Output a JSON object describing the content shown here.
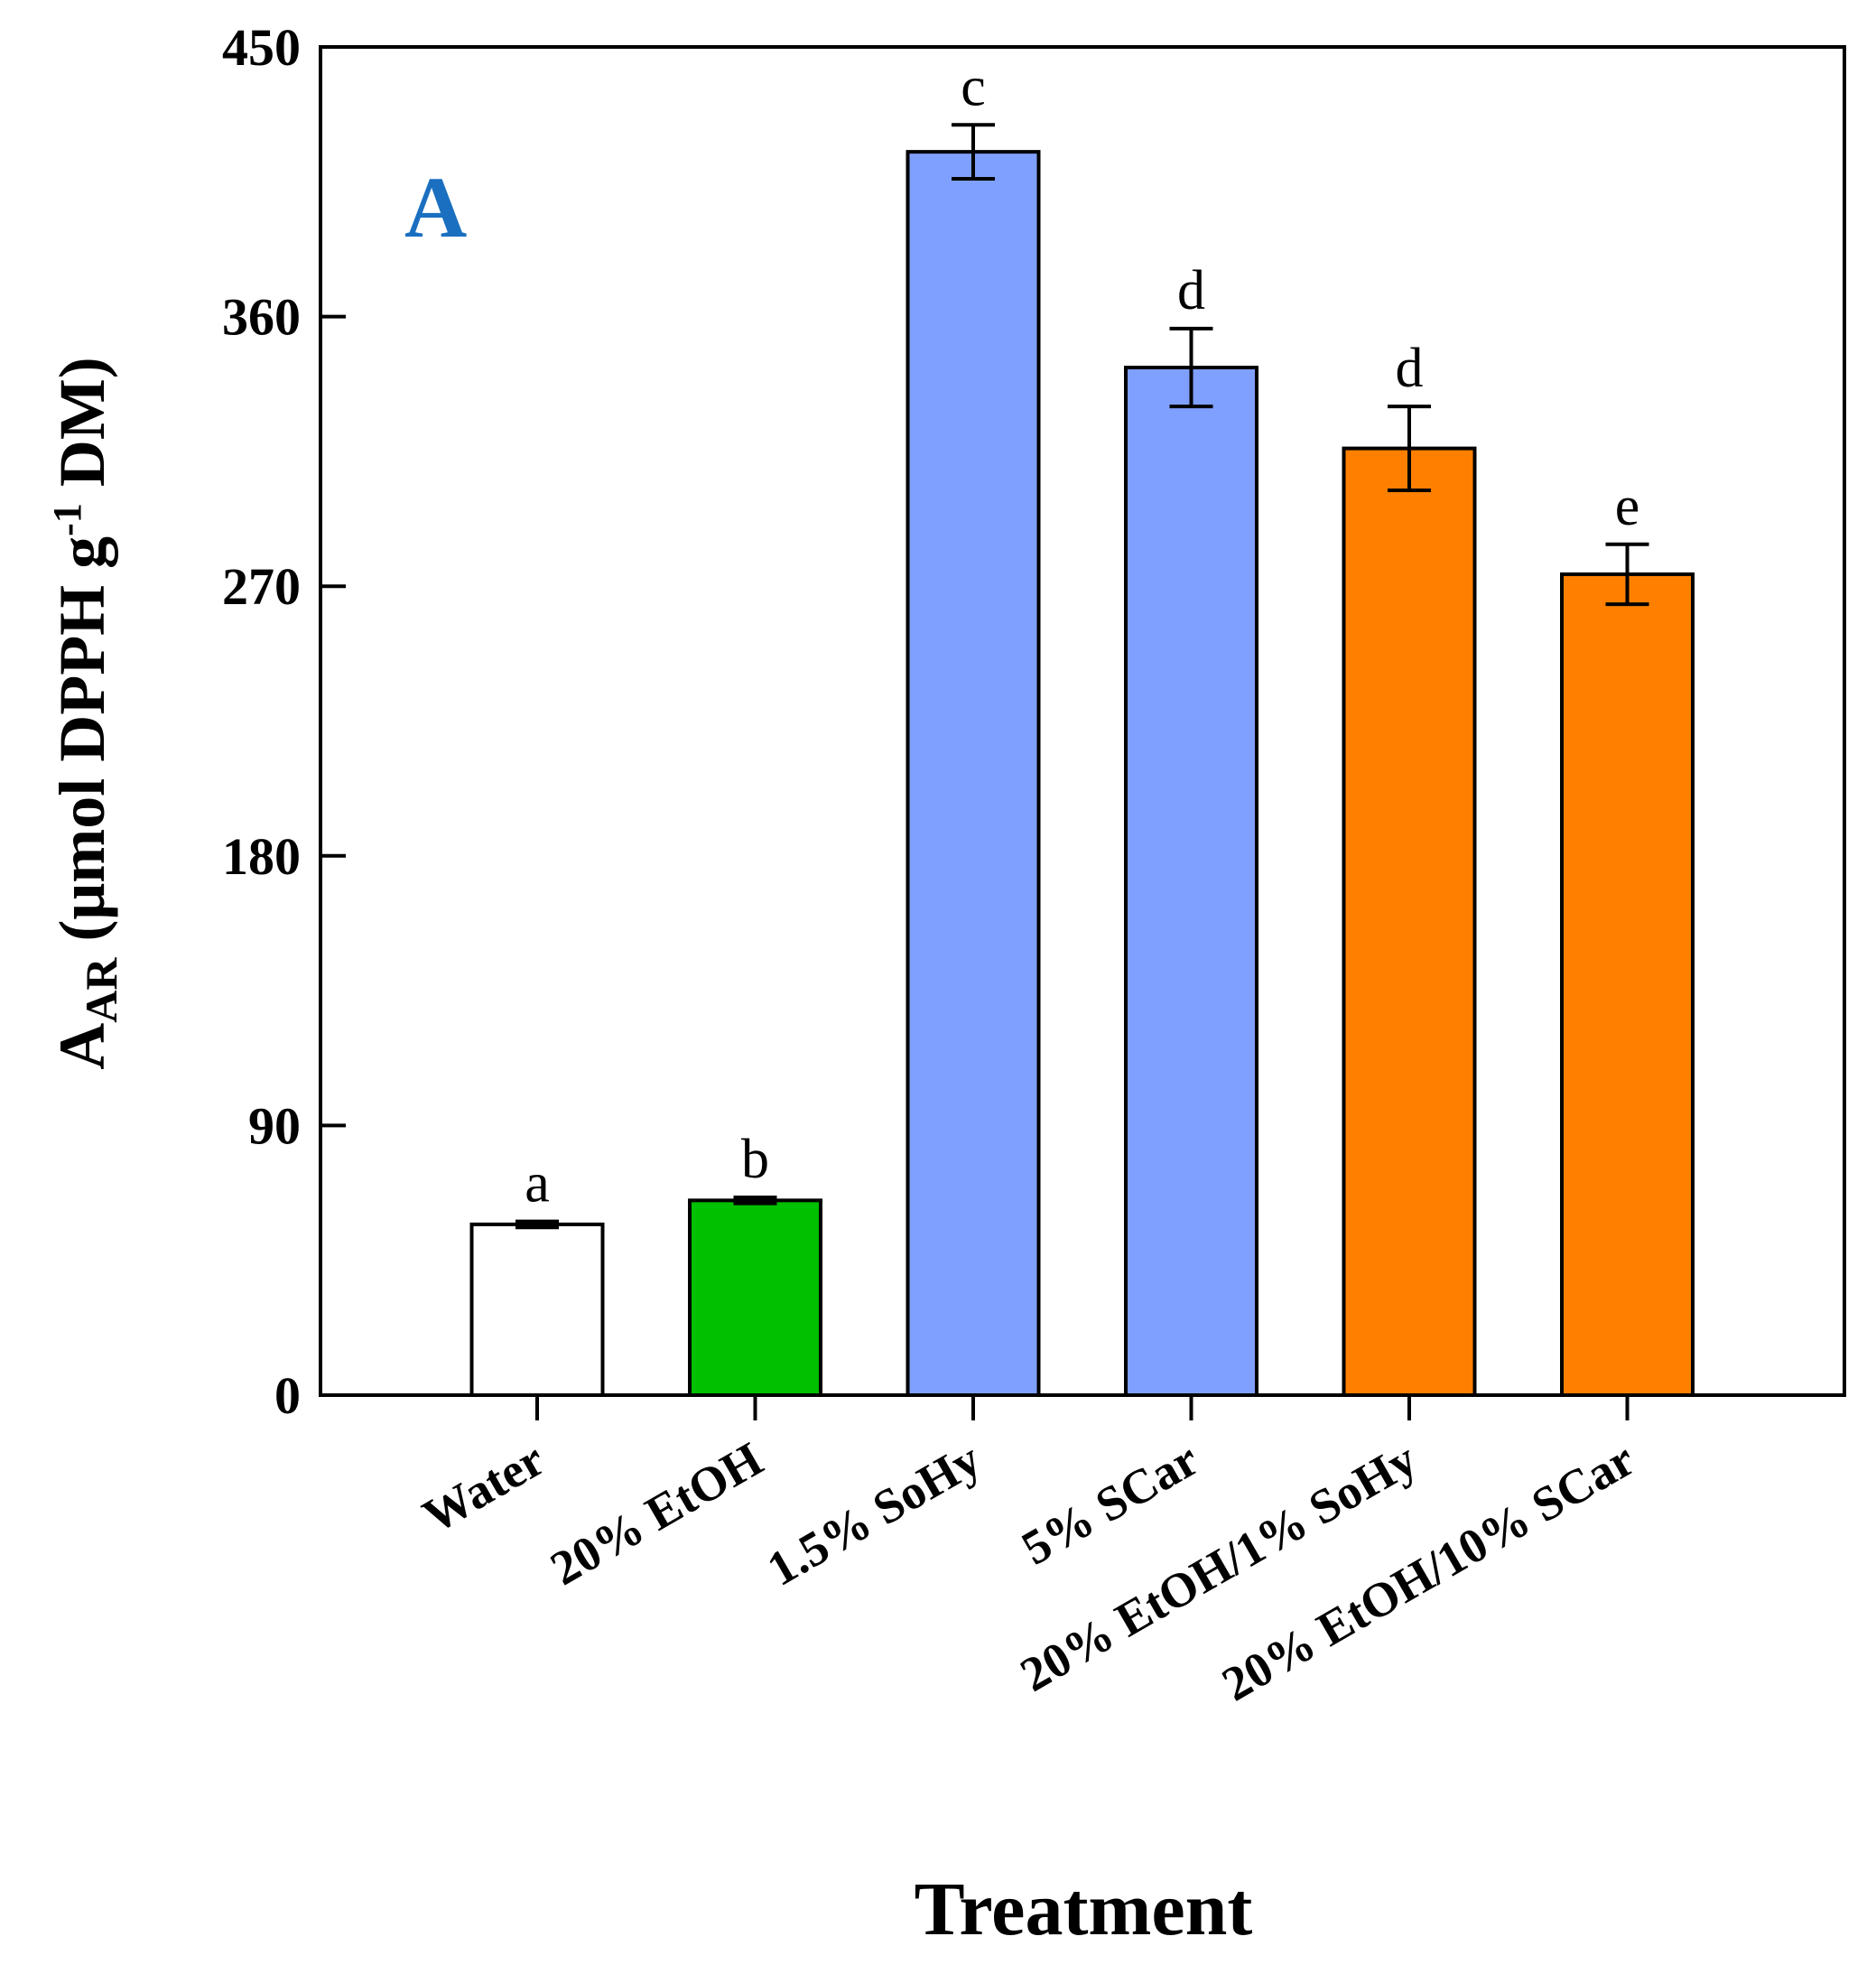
{
  "chart_data": {
    "type": "bar",
    "panel_label": "A",
    "panel_label_color": "#1a6fc0",
    "xlabel": "Treatment",
    "ylabel": {
      "main": "A",
      "sub": "AR",
      "mid": " (μmol DPPH g",
      "sup": "-1",
      "end": " DM)"
    },
    "ylim": [
      0,
      450
    ],
    "yticks": [
      0,
      90,
      180,
      270,
      360,
      450
    ],
    "grid": false,
    "categories": [
      "Water",
      "20% EtOH",
      "1.5% SoHy",
      "5% SCar",
      "20% EtOH/1% SoHy",
      "20% EtOH/10% SCar"
    ],
    "values": [
      57,
      65,
      415,
      343,
      316,
      274
    ],
    "errors": [
      1,
      1,
      9,
      13,
      14,
      10
    ],
    "significance": [
      "a",
      "b",
      "c",
      "d",
      "d",
      "e"
    ],
    "colors": [
      "#ffffff",
      "#00c000",
      "#80a0ff",
      "#80a0ff",
      "#ff8000",
      "#ff8000"
    ]
  }
}
